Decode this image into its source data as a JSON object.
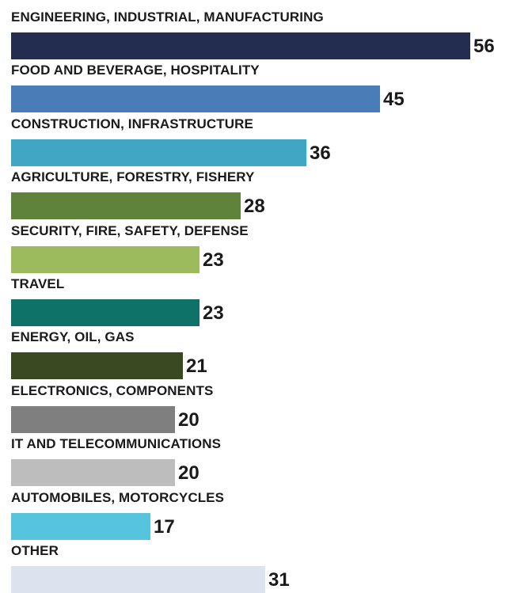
{
  "chart_data": {
    "type": "bar",
    "orientation": "horizontal",
    "categories": [
      "ENGINEERING, INDUSTRIAL, MANUFACTURING",
      "FOOD AND BEVERAGE, HOSPITALITY",
      "CONSTRUCTION, INFRASTRUCTURE",
      "AGRICULTURE, FORESTRY, FISHERY",
      "SECURITY, FIRE, SAFETY, DEFENSE",
      "TRAVEL",
      "ENERGY, OIL, GAS",
      "ELECTRONICS, COMPONENTS",
      "IT AND TELECOMMUNICATIONS",
      "AUTOMOBILES, MOTORCYCLES",
      "OTHER"
    ],
    "values": [
      56,
      45,
      36,
      28,
      23,
      23,
      21,
      20,
      20,
      17,
      31
    ],
    "colors": [
      "#232d4f",
      "#4a7db8",
      "#40a6c3",
      "#5f833a",
      "#9bbb5c",
      "#0f7268",
      "#394a22",
      "#7f7f7f",
      "#bdbdbd",
      "#55c4dc",
      "#dbe3ef"
    ],
    "title": "",
    "xlabel": "",
    "ylabel": "",
    "xlim": [
      0,
      56
    ],
    "grid": false,
    "legend": false
  }
}
